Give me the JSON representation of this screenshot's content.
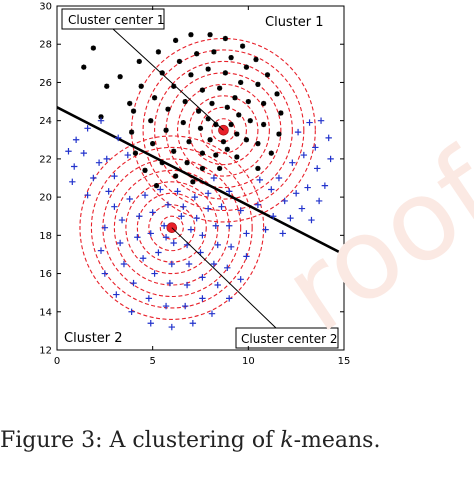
{
  "chart_data": {
    "type": "scatter",
    "xlim": [
      0,
      15
    ],
    "ylim": [
      12,
      30
    ],
    "xticks": [
      "0",
      "5",
      "10",
      "15"
    ],
    "yticks": [
      "12",
      "14",
      "16",
      "18",
      "20",
      "22",
      "24",
      "26",
      "28",
      "30"
    ],
    "grid": false,
    "annotations": {
      "center1": "Cluster center 1",
      "center2": "Cluster center 2",
      "cluster1": "Cluster 1",
      "cluster2": "Cluster 2"
    },
    "centers": [
      {
        "x": 8.7,
        "y": 23.5,
        "color": "#e8202a"
      },
      {
        "x": 6.0,
        "y": 18.4,
        "color": "#e8202a"
      }
    ],
    "boundary": {
      "x": [
        0,
        15
      ],
      "y": [
        24.7,
        17.0
      ]
    },
    "contour_color": "#e8202a",
    "contours": [
      {
        "center": 0,
        "radii": [
          0.6,
          1.2,
          1.8,
          2.4,
          3.0,
          3.6,
          4.2,
          4.8
        ]
      },
      {
        "center": 1,
        "radii": [
          0.6,
          1.2,
          1.8,
          2.4,
          3.0,
          3.6,
          4.2,
          4.8
        ]
      }
    ],
    "series": [
      {
        "marker": "asterisk",
        "color": "#000000",
        "points": [
          [
            1.9,
            27.8
          ],
          [
            1.4,
            26.8
          ],
          [
            2.6,
            25.8
          ],
          [
            3.3,
            26.3
          ],
          [
            2.3,
            24.2
          ],
          [
            3.8,
            24.9
          ],
          [
            4.3,
            27.1
          ],
          [
            5.3,
            27.6
          ],
          [
            6.2,
            28.2
          ],
          [
            7.0,
            28.5
          ],
          [
            8.0,
            28.5
          ],
          [
            8.8,
            28.3
          ],
          [
            9.7,
            27.9
          ],
          [
            10.4,
            27.2
          ],
          [
            11.0,
            26.4
          ],
          [
            11.5,
            25.4
          ],
          [
            11.7,
            24.4
          ],
          [
            11.6,
            23.3
          ],
          [
            11.2,
            22.3
          ],
          [
            10.5,
            21.5
          ],
          [
            4.4,
            25.8
          ],
          [
            4.0,
            24.5
          ],
          [
            3.9,
            23.4
          ],
          [
            4.1,
            22.3
          ],
          [
            4.6,
            21.4
          ],
          [
            5.2,
            20.6
          ],
          [
            5.5,
            26.5
          ],
          [
            6.4,
            27.1
          ],
          [
            7.3,
            27.5
          ],
          [
            8.2,
            27.6
          ],
          [
            9.1,
            27.3
          ],
          [
            9.9,
            26.8
          ],
          [
            10.5,
            25.9
          ],
          [
            10.8,
            24.9
          ],
          [
            10.8,
            23.8
          ],
          [
            10.5,
            22.8
          ],
          [
            5.1,
            25.2
          ],
          [
            4.9,
            24.0
          ],
          [
            5.0,
            22.8
          ],
          [
            5.5,
            21.8
          ],
          [
            6.2,
            21.1
          ],
          [
            7.1,
            20.8
          ],
          [
            6.1,
            25.8
          ],
          [
            7.0,
            26.4
          ],
          [
            7.9,
            26.7
          ],
          [
            8.8,
            26.5
          ],
          [
            9.6,
            26.0
          ],
          [
            10.0,
            25.0
          ],
          [
            10.1,
            24.0
          ],
          [
            9.9,
            23.0
          ],
          [
            9.4,
            22.1
          ],
          [
            5.8,
            24.6
          ],
          [
            5.7,
            23.5
          ],
          [
            6.1,
            22.4
          ],
          [
            6.8,
            21.8
          ],
          [
            7.6,
            21.5
          ],
          [
            8.5,
            21.5
          ],
          [
            6.7,
            25.0
          ],
          [
            7.6,
            25.6
          ],
          [
            8.5,
            25.7
          ],
          [
            9.3,
            25.2
          ],
          [
            9.5,
            24.3
          ],
          [
            9.4,
            23.3
          ],
          [
            8.9,
            22.5
          ],
          [
            6.6,
            23.9
          ],
          [
            6.9,
            22.9
          ],
          [
            7.6,
            22.3
          ],
          [
            8.3,
            22.2
          ],
          [
            7.4,
            24.5
          ],
          [
            8.1,
            24.9
          ],
          [
            8.9,
            24.7
          ],
          [
            9.1,
            23.8
          ],
          [
            8.7,
            22.9
          ],
          [
            8.0,
            23.0
          ],
          [
            7.5,
            23.6
          ],
          [
            8.3,
            23.8
          ],
          [
            7.9,
            24.1
          ]
        ]
      },
      {
        "marker": "plus",
        "color": "#2233cc",
        "points": [
          [
            0.6,
            22.4
          ],
          [
            1.0,
            23.0
          ],
          [
            1.6,
            23.6
          ],
          [
            2.3,
            24.0
          ],
          [
            0.9,
            21.6
          ],
          [
            1.4,
            22.3
          ],
          [
            0.8,
            20.8
          ],
          [
            1.9,
            21.0
          ],
          [
            2.6,
            22.0
          ],
          [
            3.2,
            23.1
          ],
          [
            2.2,
            21.8
          ],
          [
            3.0,
            21.1
          ],
          [
            2.7,
            20.3
          ],
          [
            3.7,
            22.2
          ],
          [
            1.6,
            20.1
          ],
          [
            12.6,
            23.4
          ],
          [
            13.2,
            23.9
          ],
          [
            13.8,
            24.0
          ],
          [
            14.2,
            23.1
          ],
          [
            13.5,
            22.6
          ],
          [
            12.9,
            22.2
          ],
          [
            14.3,
            22.0
          ],
          [
            13.6,
            21.5
          ],
          [
            12.3,
            21.8
          ],
          [
            14.0,
            20.6
          ],
          [
            13.1,
            20.5
          ],
          [
            12.5,
            20.2
          ],
          [
            11.6,
            21.0
          ],
          [
            13.7,
            19.8
          ],
          [
            12.8,
            19.4
          ],
          [
            11.9,
            19.8
          ],
          [
            11.2,
            20.4
          ],
          [
            10.6,
            20.9
          ],
          [
            12.2,
            18.9
          ],
          [
            11.3,
            19.0
          ],
          [
            10.5,
            19.6
          ],
          [
            13.3,
            18.8
          ],
          [
            10.9,
            18.3
          ],
          [
            11.8,
            18.1
          ],
          [
            3.0,
            19.5
          ],
          [
            2.5,
            18.4
          ],
          [
            2.3,
            17.2
          ],
          [
            2.5,
            16.0
          ],
          [
            3.1,
            14.9
          ],
          [
            3.9,
            14.0
          ],
          [
            4.9,
            13.4
          ],
          [
            6.0,
            13.2
          ],
          [
            7.1,
            13.4
          ],
          [
            8.1,
            13.9
          ],
          [
            9.0,
            14.7
          ],
          [
            9.6,
            15.7
          ],
          [
            9.9,
            16.9
          ],
          [
            9.9,
            18.1
          ],
          [
            9.6,
            19.3
          ],
          [
            9.0,
            20.3
          ],
          [
            8.2,
            21.0
          ],
          [
            3.8,
            19.9
          ],
          [
            3.4,
            18.8
          ],
          [
            3.3,
            17.6
          ],
          [
            3.5,
            16.5
          ],
          [
            4.0,
            15.5
          ],
          [
            4.8,
            14.7
          ],
          [
            5.7,
            14.3
          ],
          [
            6.7,
            14.3
          ],
          [
            7.6,
            14.7
          ],
          [
            8.4,
            15.4
          ],
          [
            8.9,
            16.3
          ],
          [
            9.1,
            17.4
          ],
          [
            9.0,
            18.5
          ],
          [
            8.6,
            19.5
          ],
          [
            7.9,
            20.2
          ],
          [
            4.6,
            20.1
          ],
          [
            4.3,
            19.0
          ],
          [
            4.2,
            17.9
          ],
          [
            4.5,
            16.8
          ],
          [
            5.1,
            16.0
          ],
          [
            5.9,
            15.5
          ],
          [
            6.8,
            15.4
          ],
          [
            7.6,
            15.8
          ],
          [
            8.2,
            16.5
          ],
          [
            8.4,
            17.5
          ],
          [
            8.3,
            18.5
          ],
          [
            7.9,
            19.4
          ],
          [
            7.2,
            20.0
          ],
          [
            6.3,
            20.3
          ],
          [
            5.4,
            20.4
          ],
          [
            5.0,
            19.2
          ],
          [
            4.9,
            18.1
          ],
          [
            5.3,
            17.1
          ],
          [
            6.0,
            16.5
          ],
          [
            6.9,
            16.5
          ],
          [
            7.5,
            17.1
          ],
          [
            7.6,
            18.0
          ],
          [
            7.3,
            18.9
          ],
          [
            6.6,
            19.5
          ],
          [
            5.8,
            19.6
          ],
          [
            5.6,
            18.5
          ],
          [
            6.1,
            17.6
          ],
          [
            6.8,
            17.5
          ],
          [
            7.0,
            18.3
          ],
          [
            6.5,
            19.0
          ],
          [
            5.7,
            17.9
          ]
        ]
      }
    ]
  },
  "caption": {
    "prefix": "Figure 3: A clustering of ",
    "k": "k",
    "suffix": "-means."
  },
  "watermark": {
    "text": "roof"
  }
}
